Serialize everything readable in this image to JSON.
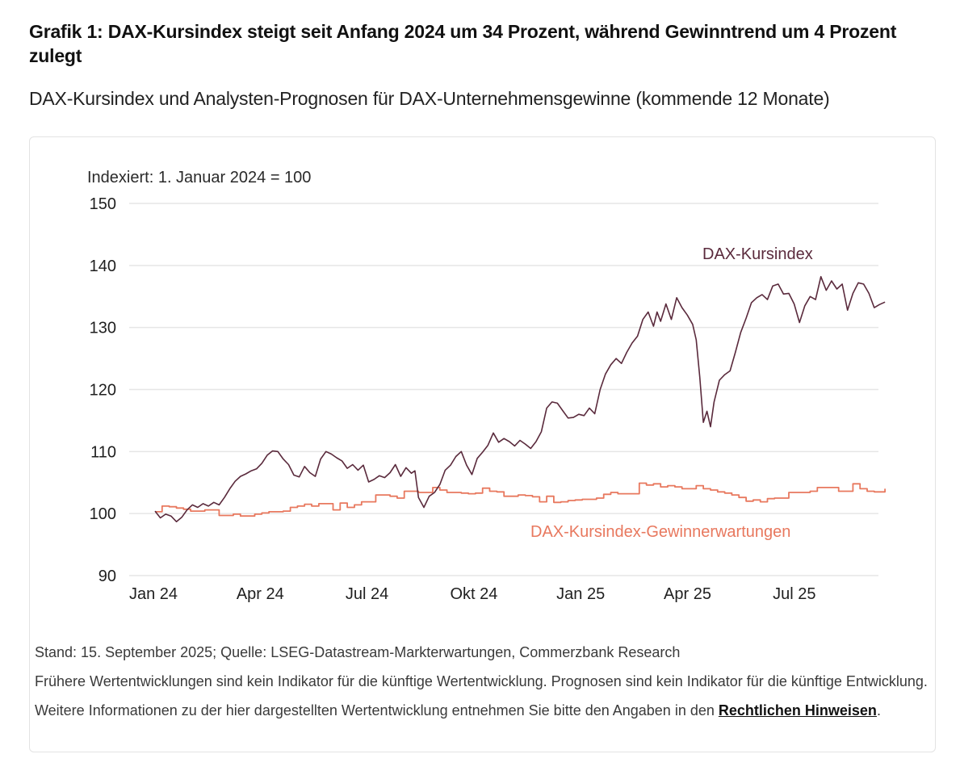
{
  "header": {
    "title": "Grafik 1: DAX-Kursindex steigt seit Anfang 2024 um 34 Prozent, während Gewinntrend um 4 Prozent zulegt",
    "subtitle": "DAX-Kursindex und Analysten-Prognosen für DAX-Unternehmensgewinne (kommende 12 Monate)"
  },
  "footer": {
    "source": "Stand: 15. September 2025; Quelle: LSEG-Datastream-Markterwartungen, Commerzbank Research",
    "disclaimer": "Frühere Wertentwicklungen sind kein Indikator für die künftige Wertentwicklung. Prognosen sind kein Indikator für die künftige Entwicklung. Weitere Informationen zu der hier dargestellten Wertentwicklung entnehmen Sie bitte den Angaben in den ",
    "link_label": "Rechtlichen Hinweisen",
    "end": "."
  },
  "chart_data": {
    "type": "line",
    "title": "DAX-Kursindex und Analysten-Prognosen für DAX-Unternehmensgewinne (kommende 12 Monate)",
    "annotation": "Indexiert: 1. Januar 2024 = 100",
    "xlabel": "",
    "ylabel": "",
    "ylim": [
      90,
      150
    ],
    "yticks": [
      90,
      100,
      110,
      120,
      130,
      140,
      150
    ],
    "ytick_labels": [
      "90",
      "100",
      "110",
      "120",
      "130",
      "140",
      "150"
    ],
    "xlim_months": [
      0,
      20.5
    ],
    "xticks_months": [
      0,
      3,
      6,
      9,
      12,
      15,
      18
    ],
    "xtick_labels": [
      "Jan 24",
      "Apr 24",
      "Jul 24",
      "Okt 24",
      "Jan 25",
      "Apr 25",
      "Jul 25"
    ],
    "x_unit": "months since 1 Jan 2024",
    "grid": "horizontal",
    "legend": "inline labels",
    "series": [
      {
        "name": "DAX-Kursindex",
        "color": "#5a2a3c",
        "label_position": "top-right",
        "x": [
          0,
          0.15,
          0.3,
          0.45,
          0.6,
          0.75,
          0.9,
          1.05,
          1.2,
          1.35,
          1.5,
          1.65,
          1.8,
          1.95,
          2.1,
          2.25,
          2.4,
          2.55,
          2.7,
          2.85,
          3.0,
          3.15,
          3.3,
          3.45,
          3.6,
          3.75,
          3.9,
          4.05,
          4.2,
          4.35,
          4.5,
          4.65,
          4.8,
          4.95,
          5.1,
          5.25,
          5.4,
          5.55,
          5.7,
          5.85,
          6.0,
          6.15,
          6.3,
          6.45,
          6.6,
          6.75,
          6.9,
          7.05,
          7.2,
          7.3,
          7.4,
          7.55,
          7.7,
          7.85,
          8.0,
          8.15,
          8.3,
          8.45,
          8.6,
          8.75,
          8.9,
          9.05,
          9.2,
          9.35,
          9.5,
          9.65,
          9.8,
          9.95,
          10.1,
          10.25,
          10.4,
          10.55,
          10.7,
          10.85,
          11.0,
          11.15,
          11.3,
          11.45,
          11.6,
          11.75,
          11.9,
          12.05,
          12.2,
          12.35,
          12.5,
          12.65,
          12.8,
          12.95,
          13.1,
          13.25,
          13.4,
          13.55,
          13.7,
          13.85,
          14.0,
          14.1,
          14.2,
          14.35,
          14.5,
          14.65,
          14.8,
          14.95,
          15.1,
          15.2,
          15.3,
          15.4,
          15.5,
          15.6,
          15.7,
          15.85,
          16.0,
          16.15,
          16.3,
          16.45,
          16.6,
          16.75,
          16.9,
          17.05,
          17.2,
          17.35,
          17.5,
          17.65,
          17.8,
          17.95,
          18.1,
          18.25,
          18.4,
          18.55,
          18.7,
          18.85,
          19.0,
          19.15,
          19.3,
          19.45,
          19.6,
          19.75,
          19.9,
          20.05,
          20.2,
          20.35,
          20.5
        ],
        "values": [
          100.4,
          99.3,
          99.9,
          99.6,
          98.7,
          99.4,
          100.6,
          101.4,
          101.0,
          101.6,
          101.2,
          101.8,
          101.4,
          102.6,
          104.0,
          105.2,
          106.0,
          106.4,
          106.9,
          107.2,
          108.1,
          109.4,
          110.1,
          110.0,
          108.8,
          107.9,
          106.2,
          105.9,
          107.6,
          106.6,
          106.0,
          108.8,
          110.0,
          109.6,
          109.0,
          108.5,
          107.3,
          107.9,
          107.0,
          107.8,
          105.1,
          105.5,
          106.1,
          105.8,
          106.6,
          107.9,
          106.0,
          107.4,
          106.5,
          106.9,
          102.6,
          101.0,
          102.8,
          103.4,
          104.7,
          107.0,
          107.8,
          109.2,
          110.0,
          107.8,
          106.3,
          108.9,
          109.9,
          111.0,
          113.0,
          111.5,
          112.1,
          111.6,
          110.9,
          111.8,
          111.2,
          110.5,
          111.6,
          113.2,
          117.0,
          118.0,
          117.8,
          116.6,
          115.4,
          115.5,
          116.0,
          115.8,
          117.0,
          116.1,
          120.0,
          122.5,
          124.0,
          125.0,
          124.2,
          126.0,
          127.5,
          128.6,
          131.3,
          132.5,
          130.2,
          132.5,
          131.0,
          133.8,
          131.3,
          134.8,
          133.2,
          132.0,
          130.5,
          128.0,
          122.0,
          114.7,
          116.5,
          114.0,
          118.0,
          121.5,
          122.4,
          123.0,
          126.0,
          129.2,
          131.5,
          134.0,
          134.8,
          135.3,
          134.5,
          136.7,
          137.0,
          135.4,
          135.5,
          133.8,
          130.8,
          133.5,
          135.0,
          134.5,
          138.2,
          136.0,
          137.5,
          136.2,
          137.0,
          132.8,
          135.5,
          137.2,
          137.0,
          135.5,
          133.2,
          133.7,
          134.1
        ]
      },
      {
        "name": "DAX-Kursindex-Gewinnerwartungen",
        "color": "#e8785e",
        "label_position": "bottom-center",
        "x": [
          0,
          0.2,
          0.4,
          0.6,
          0.8,
          1.0,
          1.2,
          1.4,
          1.6,
          1.8,
          2.0,
          2.2,
          2.4,
          2.6,
          2.8,
          3.0,
          3.2,
          3.4,
          3.6,
          3.8,
          4.0,
          4.2,
          4.4,
          4.6,
          4.8,
          5.0,
          5.2,
          5.4,
          5.6,
          5.8,
          6.0,
          6.2,
          6.4,
          6.6,
          6.8,
          7.0,
          7.2,
          7.4,
          7.6,
          7.8,
          8.0,
          8.2,
          8.4,
          8.6,
          8.8,
          9.0,
          9.2,
          9.4,
          9.6,
          9.8,
          10.0,
          10.2,
          10.4,
          10.6,
          10.8,
          11.0,
          11.2,
          11.4,
          11.6,
          11.8,
          12.0,
          12.2,
          12.4,
          12.6,
          12.8,
          13.0,
          13.2,
          13.4,
          13.6,
          13.8,
          14.0,
          14.2,
          14.4,
          14.6,
          14.8,
          15.0,
          15.2,
          15.4,
          15.6,
          15.8,
          16.0,
          16.2,
          16.4,
          16.6,
          16.8,
          17.0,
          17.2,
          17.4,
          17.6,
          17.8,
          18.0,
          18.2,
          18.4,
          18.6,
          18.8,
          19.0,
          19.2,
          19.4,
          19.6,
          19.8,
          20.0,
          20.2,
          20.5
        ],
        "values": [
          100.3,
          101.2,
          101.1,
          100.9,
          100.7,
          100.4,
          100.4,
          100.6,
          100.6,
          99.7,
          99.7,
          99.9,
          99.6,
          99.6,
          99.9,
          100.1,
          100.3,
          100.3,
          100.4,
          101.0,
          101.2,
          101.5,
          101.2,
          101.6,
          101.6,
          100.6,
          101.7,
          101.0,
          101.4,
          101.9,
          101.9,
          103.0,
          103.0,
          102.8,
          102.5,
          103.6,
          103.6,
          103.4,
          103.4,
          104.2,
          103.8,
          103.4,
          103.4,
          103.3,
          103.2,
          103.3,
          104.1,
          103.6,
          103.5,
          102.8,
          102.8,
          103.0,
          102.9,
          102.7,
          101.9,
          102.8,
          101.8,
          101.9,
          102.1,
          102.2,
          102.3,
          102.3,
          102.5,
          103.1,
          103.4,
          103.2,
          103.2,
          103.2,
          104.9,
          104.6,
          104.8,
          104.3,
          104.5,
          104.3,
          104.0,
          104.0,
          104.5,
          104.0,
          103.8,
          103.5,
          103.3,
          103.0,
          102.6,
          102.0,
          102.2,
          101.9,
          102.4,
          102.5,
          102.5,
          103.4,
          103.4,
          103.4,
          103.6,
          104.2,
          104.2,
          104.2,
          103.6,
          103.6,
          104.8,
          104.0,
          103.6,
          103.5,
          104.0
        ]
      }
    ]
  }
}
